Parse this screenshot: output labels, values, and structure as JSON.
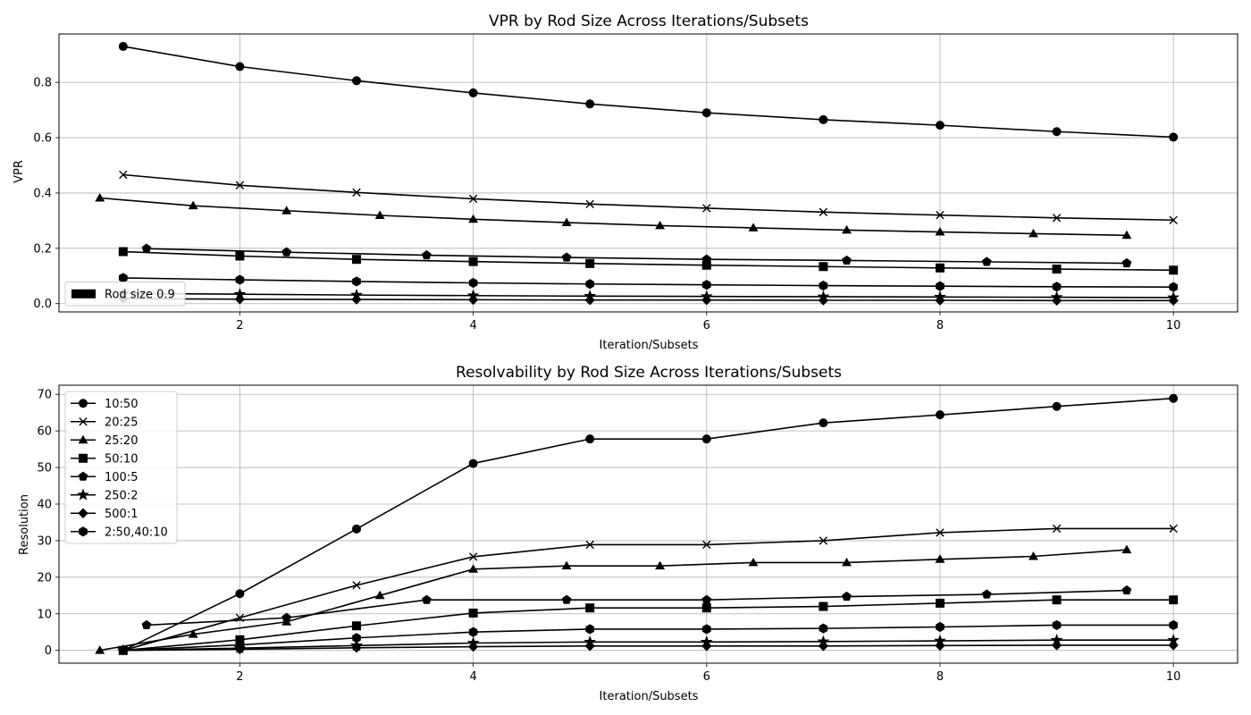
{
  "chart_data": [
    {
      "type": "line",
      "title": "VPR by Rod Size Across Iterations/Subsets",
      "xlabel": "Iteration/Subsets",
      "ylabel": "VPR",
      "xlim": [
        0.45,
        10.55
      ],
      "ylim": [
        -0.03,
        0.975
      ],
      "xticks": [
        2,
        4,
        6,
        8,
        10
      ],
      "yticks": [
        0.0,
        0.2,
        0.4,
        0.6,
        0.8
      ],
      "grid": true,
      "legend_placement": "lower-left",
      "legend": [
        {
          "label": "Rod size 0.9",
          "marker": "patch"
        }
      ],
      "series": [
        {
          "marker": "o",
          "x": [
            1,
            2,
            3,
            4,
            5,
            6,
            7,
            8,
            9,
            10
          ],
          "y": [
            0.93,
            0.857,
            0.806,
            0.762,
            0.722,
            0.69,
            0.665,
            0.645,
            0.622,
            0.602
          ]
        },
        {
          "marker": "x",
          "x": [
            1,
            2,
            3,
            4,
            5,
            6,
            7,
            8,
            9,
            10
          ],
          "y": [
            0.466,
            0.428,
            0.402,
            0.379,
            0.36,
            0.345,
            0.331,
            0.32,
            0.31,
            0.302
          ]
        },
        {
          "marker": "^",
          "x": [
            0.8,
            1.6,
            2.4,
            3.2,
            4,
            4.8,
            5.6,
            6.4,
            7.2,
            8,
            8.8,
            9.6
          ],
          "y": [
            0.382,
            0.354,
            0.336,
            0.319,
            0.305,
            0.293,
            0.282,
            0.274,
            0.266,
            0.259,
            0.253,
            0.247
          ]
        },
        {
          "marker": "s",
          "x": [
            1,
            2,
            3,
            4,
            5,
            6,
            7,
            8,
            9,
            10
          ],
          "y": [
            0.188,
            0.172,
            0.16,
            0.152,
            0.145,
            0.139,
            0.134,
            0.129,
            0.125,
            0.121
          ]
        },
        {
          "marker": "p",
          "x": [
            1.2,
            2.4,
            3.6,
            4.8,
            6,
            7.2,
            8.4,
            9.6
          ],
          "y": [
            0.199,
            0.186,
            0.175,
            0.167,
            0.16,
            0.156,
            0.151,
            0.146
          ]
        },
        {
          "marker": "h",
          "x": [
            1,
            2,
            3,
            4,
            5,
            6,
            7,
            8,
            9,
            10
          ],
          "y": [
            0.093,
            0.086,
            0.08,
            0.075,
            0.071,
            0.068,
            0.065,
            0.063,
            0.061,
            0.06
          ]
        },
        {
          "marker": "*",
          "x": [
            1,
            2,
            3,
            4,
            5,
            6,
            7,
            8,
            9,
            10
          ],
          "y": [
            0.037,
            0.034,
            0.031,
            0.029,
            0.027,
            0.026,
            0.025,
            0.024,
            0.023,
            0.022
          ]
        },
        {
          "marker": "D",
          "x": [
            1,
            2,
            3,
            4,
            5,
            6,
            7,
            8,
            9,
            10
          ],
          "y": [
            0.018,
            0.016,
            0.015,
            0.014,
            0.013,
            0.013,
            0.012,
            0.012,
            0.011,
            0.011
          ]
        }
      ]
    },
    {
      "type": "line",
      "title": "Resolvability by Rod Size Across Iterations/Subsets",
      "xlabel": "Iteration/Subsets",
      "ylabel": "Resolution",
      "xlim": [
        0.45,
        10.55
      ],
      "ylim": [
        -3.5,
        72.5
      ],
      "xticks": [
        2,
        4,
        6,
        8,
        10
      ],
      "yticks": [
        0,
        10,
        20,
        30,
        40,
        50,
        60,
        70
      ],
      "grid": true,
      "legend_placement": "upper-left",
      "legend": [
        {
          "label": "10:50",
          "marker": "o"
        },
        {
          "label": "20:25",
          "marker": "x"
        },
        {
          "label": "25:20",
          "marker": "^"
        },
        {
          "label": "50:10",
          "marker": "s"
        },
        {
          "label": "100:5",
          "marker": "p"
        },
        {
          "label": "250:2",
          "marker": "*"
        },
        {
          "label": "500:1",
          "marker": "D"
        },
        {
          "label": "2:50,40:10",
          "marker": "h"
        }
      ],
      "series": [
        {
          "marker": "o",
          "x": [
            1,
            2,
            3,
            4,
            5,
            6,
            7,
            8,
            9,
            10
          ],
          "y": [
            0,
            15.5,
            33.2,
            51.1,
            57.8,
            57.8,
            62.2,
            64.4,
            66.7,
            68.9
          ]
        },
        {
          "marker": "x",
          "x": [
            1,
            2,
            3,
            4,
            5,
            6,
            7,
            8,
            9,
            10
          ],
          "y": [
            0,
            8.9,
            17.8,
            25.6,
            28.9,
            28.9,
            30.0,
            32.2,
            33.3,
            33.3
          ]
        },
        {
          "marker": "^",
          "x": [
            0.8,
            1.6,
            2.4,
            3.2,
            4,
            4.8,
            5.6,
            6.4,
            7.2,
            8,
            8.8,
            9.6
          ],
          "y": [
            0,
            4.4,
            7.8,
            15.0,
            22.2,
            23.1,
            23.1,
            24.0,
            24.0,
            24.9,
            25.7,
            27.5
          ]
        },
        {
          "marker": "s",
          "x": [
            1,
            2,
            3,
            4,
            5,
            6,
            7,
            8,
            9,
            10
          ],
          "y": [
            0,
            2.9,
            6.7,
            10.2,
            11.6,
            11.6,
            12.0,
            12.9,
            13.8,
            13.8
          ]
        },
        {
          "marker": "p",
          "x": [
            1.2,
            2.4,
            3.6,
            4.8,
            6,
            7.2,
            8.4,
            9.6
          ],
          "y": [
            6.9,
            8.9,
            13.8,
            13.8,
            13.8,
            14.7,
            15.3,
            16.4
          ]
        },
        {
          "marker": "h",
          "x": [
            1,
            2,
            3,
            4,
            5,
            6,
            7,
            8,
            9,
            10
          ],
          "y": [
            0,
            1.5,
            3.4,
            5.0,
            5.8,
            5.8,
            6.0,
            6.4,
            6.9,
            6.9
          ]
        },
        {
          "marker": "*",
          "x": [
            1,
            2,
            3,
            4,
            5,
            6,
            7,
            8,
            9,
            10
          ],
          "y": [
            0,
            0.6,
            1.3,
            2.0,
            2.3,
            2.3,
            2.4,
            2.6,
            2.8,
            2.8
          ]
        },
        {
          "marker": "D",
          "x": [
            1,
            2,
            3,
            4,
            5,
            6,
            7,
            8,
            9,
            10
          ],
          "y": [
            0,
            0.3,
            0.7,
            1.0,
            1.2,
            1.2,
            1.2,
            1.3,
            1.4,
            1.4
          ]
        }
      ]
    }
  ]
}
